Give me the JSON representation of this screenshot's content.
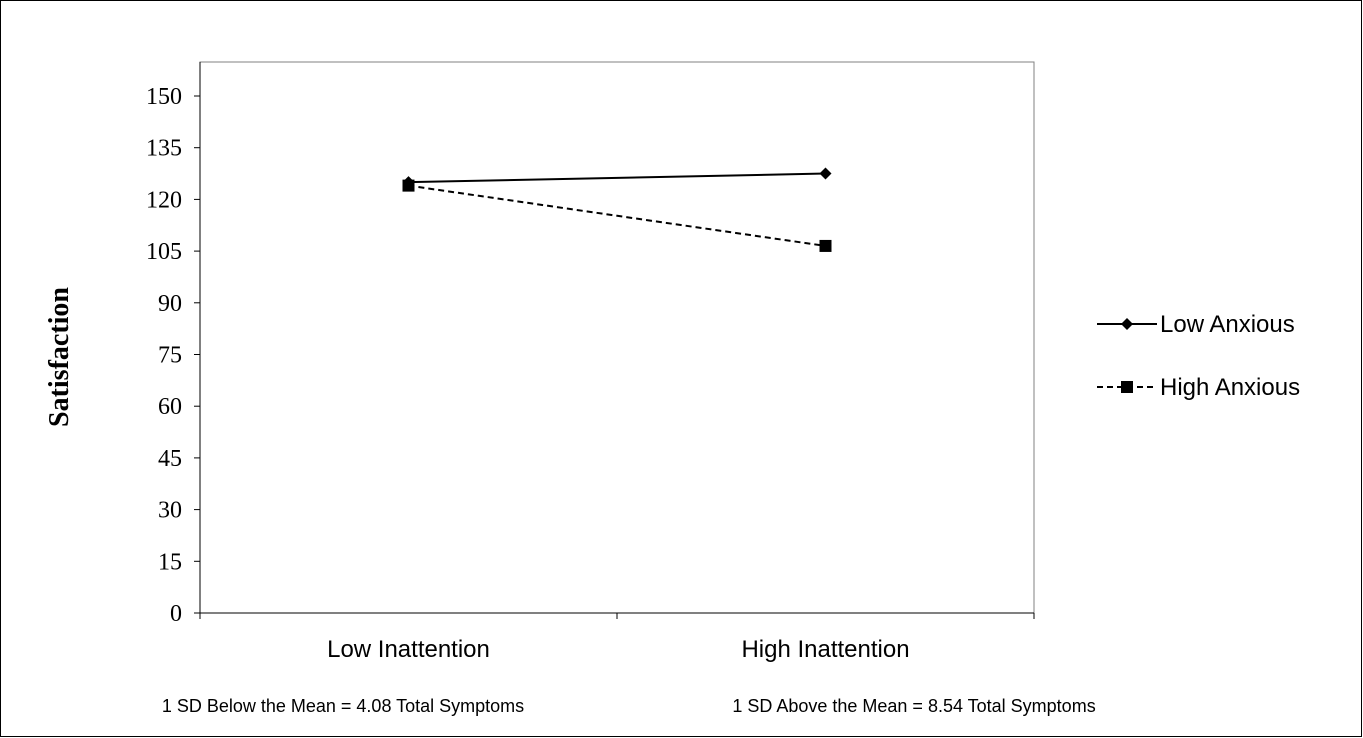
{
  "chart_data": {
    "type": "line",
    "categories": [
      "Low Inattention",
      "High Inattention"
    ],
    "category_notes": [
      "1 SD Below the Mean = 4.08 Total Symptoms",
      "1 SD Above the Mean = 8.54 Total Symptoms"
    ],
    "series": [
      {
        "name": "Low Anxious",
        "values": [
          125,
          127.5
        ],
        "line_style": "solid",
        "marker": "diamond",
        "color": "#000000"
      },
      {
        "name": "High Anxious",
        "values": [
          124,
          106.5
        ],
        "line_style": "dashed",
        "marker": "square",
        "color": "#000000"
      }
    ],
    "title": "",
    "xlabel": "",
    "ylabel": "Satisfaction",
    "ylim": [
      0,
      150
    ],
    "yticks": [
      "0",
      "15",
      "30",
      "45",
      "60",
      "75",
      "90",
      "105",
      "120",
      "135",
      "150"
    ],
    "grid": false,
    "legend_position": "right"
  }
}
